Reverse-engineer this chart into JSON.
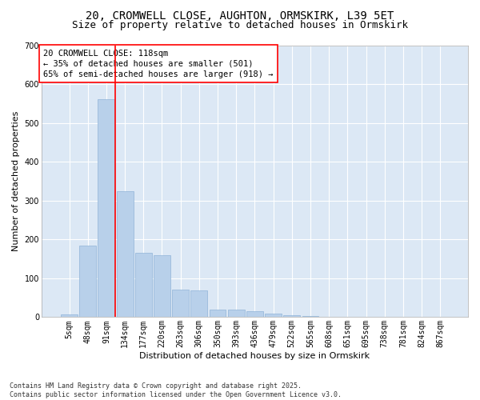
{
  "title_line1": "20, CROMWELL CLOSE, AUGHTON, ORMSKIRK, L39 5ET",
  "title_line2": "Size of property relative to detached houses in Ormskirk",
  "xlabel": "Distribution of detached houses by size in Ormskirk",
  "ylabel": "Number of detached properties",
  "categories": [
    "5sqm",
    "48sqm",
    "91sqm",
    "134sqm",
    "177sqm",
    "220sqm",
    "263sqm",
    "306sqm",
    "350sqm",
    "393sqm",
    "436sqm",
    "479sqm",
    "522sqm",
    "565sqm",
    "608sqm",
    "651sqm",
    "695sqm",
    "738sqm",
    "781sqm",
    "824sqm",
    "867sqm"
  ],
  "values": [
    8,
    185,
    560,
    325,
    165,
    160,
    70,
    68,
    20,
    20,
    15,
    10,
    5,
    2,
    1,
    1,
    0,
    0,
    0,
    0,
    0
  ],
  "bar_color": "#b8d0ea",
  "bar_edge_color": "#90b4d8",
  "vline_x": 2.5,
  "vline_color": "red",
  "annotation_text": "20 CROMWELL CLOSE: 118sqm\n← 35% of detached houses are smaller (501)\n65% of semi-detached houses are larger (918) →",
  "annotation_box_color": "white",
  "annotation_box_edge_color": "red",
  "ylim": [
    0,
    700
  ],
  "yticks": [
    0,
    100,
    200,
    300,
    400,
    500,
    600,
    700
  ],
  "bg_color": "#dce8f5",
  "grid_color": "white",
  "footer": "Contains HM Land Registry data © Crown copyright and database right 2025.\nContains public sector information licensed under the Open Government Licence v3.0.",
  "title_fontsize": 10,
  "subtitle_fontsize": 9,
  "tick_fontsize": 7,
  "ylabel_fontsize": 8,
  "xlabel_fontsize": 8,
  "annotation_fontsize": 7.5
}
